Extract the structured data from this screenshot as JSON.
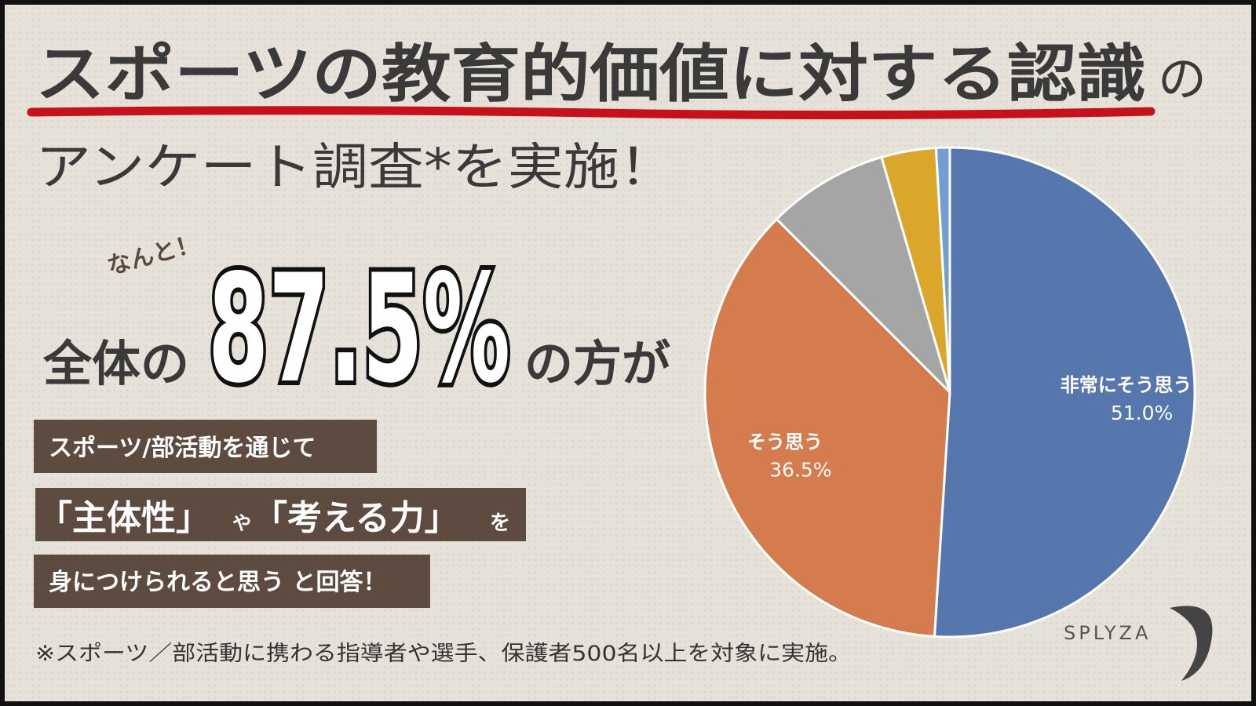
{
  "header": {
    "title": "スポーツの教育的価値に対する認識",
    "title_suffix": "の",
    "subtitle": "アンケート調査*を実施！"
  },
  "highlight": {
    "intro": "なんと！",
    "before": "全体の",
    "figure": "87.5%",
    "after": "の方が"
  },
  "message": {
    "line1": "スポーツ/部活動を通じて",
    "line2": [
      "「主体性」",
      "や",
      "「考える力」",
      "を"
    ],
    "line3": "身につけられると思う と回答！"
  },
  "footnote": "※スポーツ／部活動に携わる指導者や選手、保護者500名以上を対象に実施。",
  "logo": "SPLYZA",
  "chart_data": {
    "type": "pie",
    "categories": [
      "非常にそう思う",
      "そう思う",
      null,
      null,
      null
    ],
    "values": [
      51.0,
      36.5,
      8.0,
      3.6,
      0.9
    ],
    "value_labels": [
      "51.0%",
      "36.5%",
      null,
      null,
      null
    ],
    "colors": [
      "#5677ad",
      "#d47c4e",
      "#a5a5a5",
      "#dba72a",
      "#6fa0d0"
    ]
  }
}
